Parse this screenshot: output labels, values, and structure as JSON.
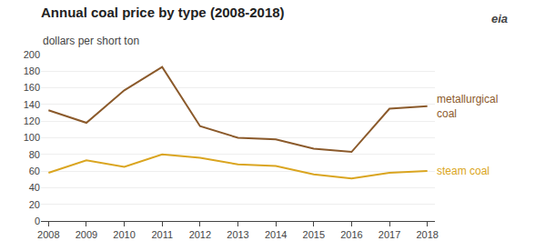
{
  "chart_data": {
    "type": "line",
    "title": "Annual coal price by type (2008-2018)",
    "subtitle": "dollars per short ton",
    "x": [
      2008,
      2009,
      2010,
      2011,
      2012,
      2013,
      2014,
      2015,
      2016,
      2017,
      2018
    ],
    "series": [
      {
        "name": "metallurgical\ncoal",
        "color": "#8B5A2B",
        "values": [
          133,
          118,
          157,
          185,
          114,
          100,
          98,
          87,
          83,
          135,
          138
        ]
      },
      {
        "name": "steam coal",
        "color": "#DAA520",
        "values": [
          58,
          73,
          65,
          80,
          76,
          68,
          66,
          56,
          51,
          58,
          60
        ]
      }
    ],
    "xlim": [
      2007.8,
      2018.2
    ],
    "xticks": [
      2008,
      2009,
      2010,
      2011,
      2012,
      2013,
      2014,
      2015,
      2016,
      2017,
      2018
    ],
    "ylim": [
      0,
      200
    ],
    "yticks": [
      0,
      20,
      40,
      60,
      80,
      100,
      120,
      140,
      160,
      180,
      200
    ],
    "grid": true,
    "annotations": [
      "eia"
    ]
  }
}
